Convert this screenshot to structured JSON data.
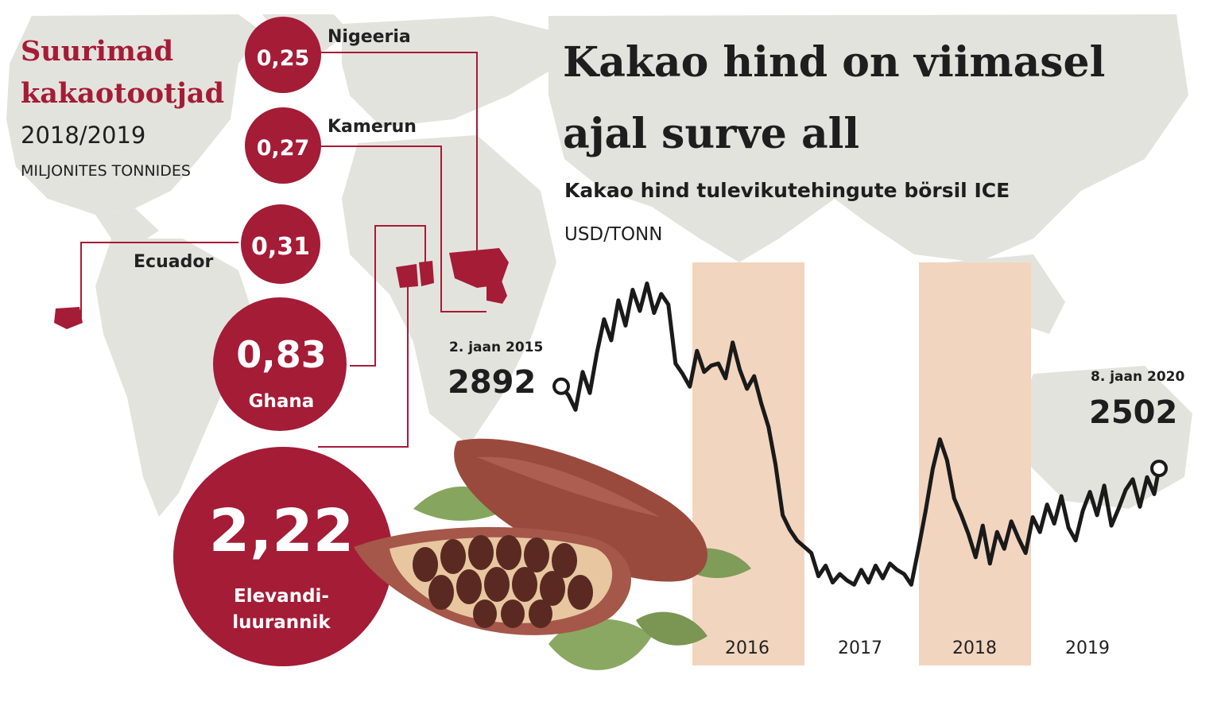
{
  "producers": {
    "title_line1": "Suurimad",
    "title_line2": "kakaotootjad",
    "season": "2018/2019",
    "unit": "MILJONITES TONNIDES",
    "items": [
      {
        "name": "Nigeeria",
        "value": "0,25"
      },
      {
        "name": "Kamerun",
        "value": "0,27"
      },
      {
        "name": "Ecuador",
        "value": "0,31"
      },
      {
        "name": "Ghana",
        "value": "0,83"
      },
      {
        "name_line1": "Elevandi-",
        "name_line2": "luurannik",
        "value": "2,22"
      }
    ],
    "colors": {
      "bubble": "#a41c36",
      "map": "#e2e2dc"
    }
  },
  "headline": {
    "line1": "Kakao hind on viimasel",
    "line2": "ajal surve all",
    "subtitle": "Kakao hind tulevikutehingute börsil ICE",
    "unit": "USD/TONN"
  },
  "chart_data": {
    "type": "line",
    "title": "Kakao hind tulevikutehingute börsil ICE",
    "ylabel": "USD/TONN",
    "xlabel": "",
    "start": {
      "label": "2. jaan 2015",
      "value": "2892"
    },
    "end": {
      "label": "8. jaan 2020",
      "value": "2502"
    },
    "x_labels": [
      "2016",
      "2017",
      "2018",
      "2019"
    ],
    "shaded_years": [
      "2016",
      "2018"
    ],
    "ylim": [
      1800,
      3450
    ],
    "series": [
      {
        "x": [
          2015.0,
          2015.06,
          2015.12,
          2015.18,
          2015.24,
          2015.3,
          2015.36,
          2015.42,
          2015.48,
          2015.54,
          2015.6,
          2015.66,
          2015.72,
          2015.78,
          2015.84,
          2015.9,
          2015.96,
          2016.02,
          2016.08,
          2016.14,
          2016.2,
          2016.26,
          2016.32,
          2016.38,
          2016.44,
          2016.5,
          2016.56,
          2016.62,
          2016.68,
          2016.74,
          2016.8,
          2016.86,
          2016.92,
          2016.98,
          2017.04,
          2017.1,
          2017.16,
          2017.22,
          2017.28,
          2017.34,
          2017.4,
          2017.46,
          2017.52,
          2017.58,
          2017.64,
          2017.7,
          2017.76,
          2017.82,
          2017.88,
          2017.94,
          2018.0,
          2018.06,
          2018.12,
          2018.18,
          2018.24,
          2018.3,
          2018.36,
          2018.42,
          2018.48,
          2018.54,
          2018.6,
          2018.66,
          2018.72,
          2018.78,
          2018.84,
          2018.9,
          2018.96,
          2019.02,
          2019.08,
          2019.14,
          2019.2,
          2019.26,
          2019.32,
          2019.38,
          2019.44,
          2019.5,
          2019.56,
          2019.62,
          2019.68,
          2019.74,
          2019.8,
          2019.86,
          2019.92,
          2019.98,
          2020.02
        ],
        "y": [
          2892,
          2850,
          2780,
          2960,
          2860,
          3050,
          3210,
          3110,
          3300,
          3180,
          3350,
          3250,
          3380,
          3240,
          3330,
          3280,
          3000,
          2950,
          2890,
          3060,
          2960,
          2990,
          3000,
          2930,
          3100,
          2970,
          2880,
          2940,
          2810,
          2700,
          2520,
          2280,
          2210,
          2160,
          2130,
          2100,
          1990,
          2040,
          1960,
          2000,
          1970,
          1950,
          2020,
          1960,
          2040,
          1980,
          2050,
          2020,
          2000,
          1950,
          2120,
          2300,
          2500,
          2640,
          2540,
          2360,
          2280,
          2190,
          2080,
          2230,
          2050,
          2200,
          2120,
          2250,
          2170,
          2100,
          2270,
          2200,
          2330,
          2240,
          2370,
          2220,
          2160,
          2300,
          2390,
          2280,
          2420,
          2230,
          2310,
          2400,
          2450,
          2320,
          2460,
          2380,
          2502
        ]
      }
    ]
  }
}
